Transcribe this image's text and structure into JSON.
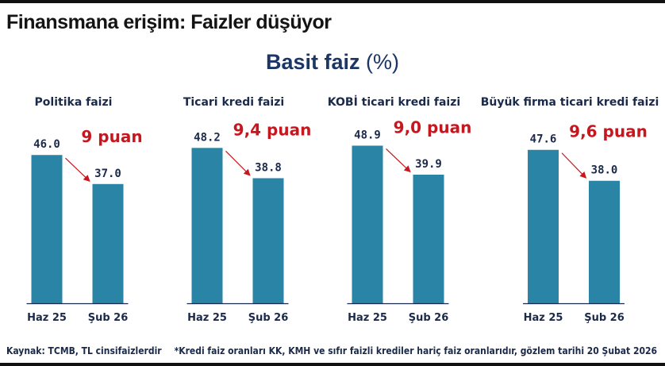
{
  "headline": "Finansmana erişim: Faizler düşüyor",
  "chart_title": {
    "main": "Basit faiz",
    "unit": "(%)"
  },
  "source": "Kaynak: TCMB, TL cinsifaizlerdir",
  "note": "*Kredi faiz oranları KK, KMH ve sıfır faizli krediler hariç faiz oranlarıdır, gözlem tarihi 20 Şubat 2026",
  "colors": {
    "bar": "#2a84a5",
    "change_label": "#c8161e",
    "arrow": "#c8161e",
    "value_label": "#1b2a4a",
    "axis": "#1b2a4a"
  },
  "chart_data": [
    {
      "type": "bar",
      "title": "Politika faizi",
      "categories": [
        "Haz 25",
        "Şub 26"
      ],
      "values": [
        46.0,
        37.0
      ],
      "value_labels": [
        "46.0",
        "37.0"
      ],
      "change_label": "9 puan",
      "ylim": [
        0,
        50
      ]
    },
    {
      "type": "bar",
      "title": "Ticari kredi faizi",
      "categories": [
        "Haz 25",
        "Şub 26"
      ],
      "values": [
        48.2,
        38.8
      ],
      "value_labels": [
        "48.2",
        "38.8"
      ],
      "change_label": "9,4 puan",
      "ylim": [
        0,
        50
      ]
    },
    {
      "type": "bar",
      "title": "KOBİ ticari kredi faizi",
      "categories": [
        "Haz 25",
        "Şub 26"
      ],
      "values": [
        48.9,
        39.9
      ],
      "value_labels": [
        "48.9",
        "39.9"
      ],
      "change_label": "9,0 puan",
      "ylim": [
        0,
        50
      ]
    },
    {
      "type": "bar",
      "title": "Büyük firma ticari kredi faizi",
      "categories": [
        "Haz 25",
        "Şub 26"
      ],
      "values": [
        47.6,
        38.0
      ],
      "value_labels": [
        "47.6",
        "38.0"
      ],
      "change_label": "9,6 puan",
      "ylim": [
        0,
        50
      ]
    }
  ]
}
